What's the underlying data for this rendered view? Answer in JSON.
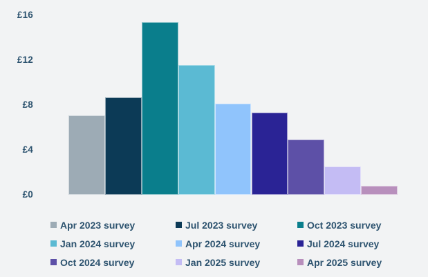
{
  "page": {
    "background": "#f2f3f4",
    "text_color": "#2d536f"
  },
  "chart_data": {
    "type": "bar",
    "title": "",
    "xlabel": "",
    "ylabel": "",
    "currency_prefix": "£",
    "categories": [
      "Apr 2023 survey",
      "Jul 2023 survey",
      "Oct 2023 survey",
      "Jan 2024 survey",
      "Apr 2024 survey",
      "Jul 2024 survey",
      "Oct 2024 survey",
      "Jan 2025 survey",
      "Apr 2025 survey"
    ],
    "values": [
      7.1,
      8.7,
      15.4,
      11.6,
      8.1,
      7.3,
      4.9,
      2.5,
      0.8
    ],
    "bar_colors": [
      "#9dabb5",
      "#0c3a56",
      "#0a7e8c",
      "#5bbad3",
      "#90c4fc",
      "#2a2395",
      "#5d50a7",
      "#c4bcf4",
      "#b88fbc"
    ],
    "ylim": [
      0,
      16
    ],
    "yticks": [
      {
        "value": 0,
        "label": "£0"
      },
      {
        "value": 4,
        "label": "£4"
      },
      {
        "value": 8,
        "label": "£8"
      },
      {
        "value": 12,
        "label": "£12"
      },
      {
        "value": 16,
        "label": "£16"
      }
    ],
    "grid": false,
    "x_axis_labels": false,
    "legend_position": "bottom",
    "legend_columns": 3,
    "legend_rows": 3
  }
}
